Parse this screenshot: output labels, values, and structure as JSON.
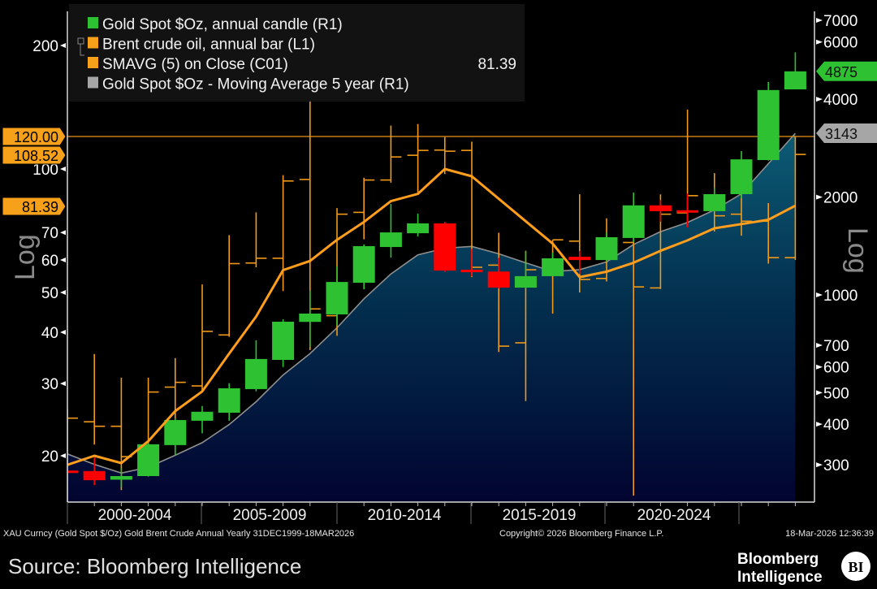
{
  "chart_data": {
    "type": "candlestick+ohlc-bar+line+area",
    "years": [
      1999,
      2000,
      2001,
      2002,
      2003,
      2004,
      2005,
      2006,
      2007,
      2008,
      2009,
      2010,
      2011,
      2012,
      2013,
      2014,
      2015,
      2016,
      2017,
      2018,
      2019,
      2020,
      2021,
      2022,
      2023,
      2024,
      2025,
      2026
    ],
    "gold": {
      "name": "Gold Spot $Oz, annual candle (R1)",
      "axis": "right",
      "open": [
        288,
        287,
        270,
        277,
        345,
        410,
        434,
        513,
        631,
        826,
        871,
        1090,
        1404,
        1548,
        1660,
        1195,
        1180,
        1053,
        1142,
        1310,
        1280,
        1497,
        1886,
        1822,
        1810,
        2042,
        2600,
        4290
      ],
      "high": [
        295,
        316,
        293,
        350,
        417,
        455,
        535,
        725,
        841,
        1030,
        1225,
        1430,
        1905,
        1778,
        1679,
        1385,
        1300,
        1364,
        1350,
        1365,
        1557,
        2065,
        1960,
        2050,
        2135,
        2770,
        4520,
        5580
      ],
      "low": [
        282,
        260,
        256,
        276,
        320,
        375,
        410,
        505,
        600,
        692,
        805,
        1041,
        1303,
        1513,
        1175,
        1140,
        1046,
        1046,
        1142,
        1160,
        1266,
        1451,
        1680,
        1613,
        1805,
        1985,
        2590,
        4290
      ],
      "close": [
        287,
        269,
        277,
        347,
        412,
        437,
        516,
        635,
        827,
        876,
        1096,
        1413,
        1557,
        1660,
        1188,
        1175,
        1053,
        1142,
        1296,
        1280,
        1505,
        1886,
        1810,
        1812,
        2042,
        2613,
        4270,
        4875
      ]
    },
    "gold_ma5": {
      "name": "Gold Spot $Oz - Moving Average 5 year (R1)",
      "axis": "right",
      "values": [
        324,
        301,
        283,
        295,
        321,
        351,
        399,
        469,
        567,
        660,
        792,
        973,
        1160,
        1328,
        1392,
        1410,
        1338,
        1255,
        1180,
        1196,
        1263,
        1430,
        1566,
        1670,
        1826,
        2048,
        2534,
        3143
      ]
    },
    "brent": {
      "name": "Brent crude oil, annual bar (L1)",
      "axis": "left",
      "open": [
        10.5,
        24.2,
        23.6,
        19.5,
        29.4,
        29.6,
        39.4,
        59.0,
        60.6,
        94.3,
        43.9,
        78.4,
        94.0,
        108.0,
        111.2,
        111.0,
        58.3,
        37.7,
        57.1,
        66.7,
        54.1,
        66.2,
        51.3,
        78.2,
        86.1,
        77.6,
        74.6,
        60.8
      ],
      "high": [
        26.0,
        35.4,
        31.0,
        31.0,
        34.6,
        52.3,
        69.0,
        78.4,
        96.6,
        147.0,
        80.3,
        95.2,
        127.6,
        128.7,
        119.6,
        116.6,
        69.9,
        63.2,
        67.2,
        86.8,
        75.8,
        71.5,
        86.7,
        139.6,
        97.7,
        92.5,
        82.6,
        120.0
      ],
      "low": [
        10.0,
        21.3,
        16.5,
        18.4,
        23.1,
        28.6,
        39.0,
        57.6,
        50.4,
        36.2,
        39.2,
        67.4,
        92.6,
        87.8,
        97.2,
        54.5,
        35.8,
        27.2,
        44.4,
        50.0,
        53.2,
        16.0,
        51.0,
        72.5,
        70.4,
        68.8,
        58.8,
        60.0
      ],
      "close": [
        24.7,
        23.6,
        19.9,
        28.6,
        30.2,
        40.2,
        58.8,
        60.6,
        93.5,
        45.6,
        77.6,
        94.0,
        107.0,
        111.0,
        110.5,
        57.6,
        37.0,
        56.8,
        67.2,
        53.8,
        66.0,
        51.6,
        77.6,
        86.1,
        76.9,
        74.6,
        60.8,
        108.52
      ]
    },
    "brent_sma5": {
      "name": "SMAVG (5)  on Close (C01)",
      "axis": "left",
      "values": [
        19.0,
        20.0,
        19.2,
        21.7,
        25.7,
        28.7,
        35.5,
        43.7,
        56.7,
        59.7,
        67.2,
        74.3,
        83.5,
        87.0,
        100.0,
        96.0,
        84.6,
        74.6,
        65.8,
        54.5,
        56.2,
        59.1,
        63.2,
        67.0,
        71.7,
        73.4,
        75.2,
        81.39
      ]
    },
    "left_axis": {
      "label": "Log",
      "scale": "log",
      "ticks": [
        "20",
        "30",
        "40",
        "50",
        "60",
        "70",
        "100",
        "200"
      ],
      "range": [
        16,
        230
      ]
    },
    "right_axis": {
      "label": "Log",
      "scale": "log",
      "ticks": [
        "300",
        "400",
        "500",
        "600",
        "700",
        "1000",
        "2000",
        "4000",
        "6000",
        "7000"
      ],
      "range": [
        240,
        7600
      ]
    },
    "x_categories": [
      "2000-2004",
      "2005-2009",
      "2010-2014",
      "2015-2019",
      "2020-2024"
    ],
    "horizontal_line": {
      "value": 120,
      "axis": "left"
    },
    "left_tags": [
      {
        "label": "120.00",
        "value": 120
      },
      {
        "label": "108.52",
        "value": 108.52
      },
      {
        "label": "81.39",
        "value": 81.39
      }
    ],
    "right_tags": [
      {
        "label": "4875",
        "value": 4875,
        "color": "#2ec132"
      },
      {
        "label": "3143",
        "value": 3143,
        "color": "#a6a6a6"
      }
    ],
    "legend": [
      {
        "label": "Gold Spot $Oz, annual candle (R1)",
        "color": "#2ec132",
        "value": ""
      },
      {
        "label": "Brent crude oil, annual bar (L1)",
        "color": "#f7a11a",
        "value": ""
      },
      {
        "label": "SMAVG (5)  on Close (C01)",
        "color": "#f7a11a",
        "value": "81.39"
      },
      {
        "label": "Gold Spot $Oz - Moving Average 5 year (R1)",
        "color": "#a6a6a6",
        "value": ""
      }
    ],
    "colors": {
      "up": "#2ec132",
      "down": "#ff0000",
      "oil": "#f29a17",
      "sma": "#ff9d1c",
      "ma_line": "#8f8f8f"
    }
  },
  "footer": {
    "description": "XAU Curncy (Gold Spot   $/Oz) Gold Brent Crude Annual Yearly 31DEC1999-18MAR2026",
    "copyright": "Copyright© 2026 Bloomberg Finance L.P.",
    "timestamp": "18-Mar-2026 12:36:39",
    "source": "Source: Bloomberg Intelligence",
    "logo_line1": "Bloomberg",
    "logo_line2": "Intelligence",
    "logo_badge": "BI"
  }
}
